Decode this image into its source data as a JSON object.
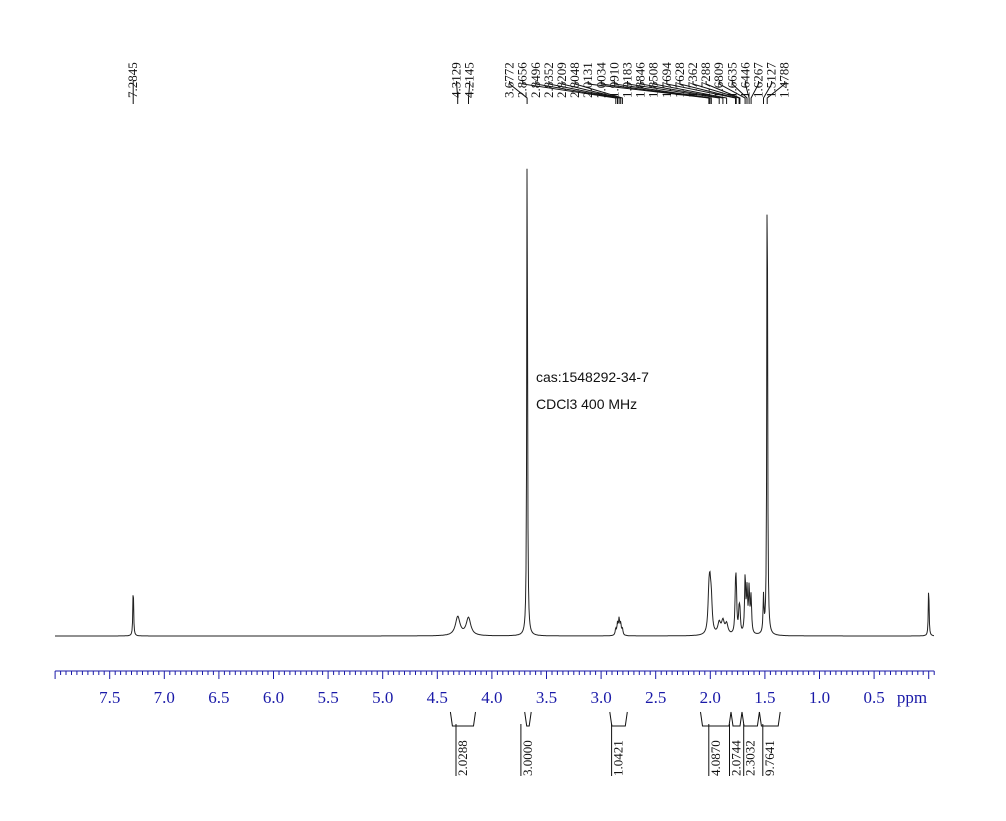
{
  "annotations": {
    "cas": "cas:1548292-34-7",
    "solvent_freq": "CDCl3   400 MHz"
  },
  "chart_data": {
    "type": "line",
    "title": "",
    "xlabel": "ppm",
    "ylabel": "",
    "x_reversed": true,
    "xlim": [
      -0.05,
      8.0
    ],
    "x_ticks": [
      "7.5",
      "7.0",
      "6.5",
      "6.0",
      "5.5",
      "5.0",
      "4.5",
      "4.0",
      "3.5",
      "3.0",
      "2.5",
      "2.0",
      "1.5",
      "1.0",
      "0.5"
    ],
    "x_tick_values": [
      7.5,
      7.0,
      6.5,
      6.0,
      5.5,
      5.0,
      4.5,
      4.0,
      3.5,
      3.0,
      2.5,
      2.0,
      1.5,
      1.0,
      0.5
    ],
    "grid": false,
    "peak_labels": [
      {
        "value": "7.2845",
        "group": 0
      },
      {
        "value": "4.3129",
        "group": 1
      },
      {
        "value": "4.2145",
        "group": 1
      },
      {
        "value": "3.6772",
        "group": 2
      },
      {
        "value": "2.8656",
        "group": 2
      },
      {
        "value": "2.8496",
        "group": 2
      },
      {
        "value": "2.8352",
        "group": 2
      },
      {
        "value": "2.8209",
        "group": 2
      },
      {
        "value": "2.8048",
        "group": 2
      },
      {
        "value": "2.0131",
        "group": 2
      },
      {
        "value": "2.0034",
        "group": 2
      },
      {
        "value": "1.9910",
        "group": 2
      },
      {
        "value": "1.9183",
        "group": 2
      },
      {
        "value": "1.8846",
        "group": 2
      },
      {
        "value": "1.8508",
        "group": 2
      },
      {
        "value": "1.7694",
        "group": 2
      },
      {
        "value": "1.7628",
        "group": 2
      },
      {
        "value": "1.7362",
        "group": 2
      },
      {
        "value": "1.7288",
        "group": 2
      },
      {
        "value": "1.6809",
        "group": 2
      },
      {
        "value": "1.6635",
        "group": 2
      },
      {
        "value": "1.6446",
        "group": 2
      },
      {
        "value": "1.6267",
        "group": 2
      },
      {
        "value": "1.5127",
        "group": 2
      },
      {
        "value": "1.4788",
        "group": 2
      }
    ],
    "peaks": [
      {
        "ppm": 7.2845,
        "height": 0.1,
        "width": 0.004
      },
      {
        "ppm": 4.3129,
        "height": 0.036,
        "width": 0.025
      },
      {
        "ppm": 4.2145,
        "height": 0.034,
        "width": 0.025
      },
      {
        "ppm": 3.6772,
        "height": 1.0,
        "width": 0.004
      },
      {
        "ppm": 2.8656,
        "height": 0.012,
        "width": 0.006
      },
      {
        "ppm": 2.8496,
        "height": 0.022,
        "width": 0.006
      },
      {
        "ppm": 2.8352,
        "height": 0.03,
        "width": 0.006
      },
      {
        "ppm": 2.8209,
        "height": 0.022,
        "width": 0.006
      },
      {
        "ppm": 2.8048,
        "height": 0.012,
        "width": 0.006
      },
      {
        "ppm": 2.0131,
        "height": 0.06,
        "width": 0.01
      },
      {
        "ppm": 2.0034,
        "height": 0.07,
        "width": 0.01
      },
      {
        "ppm": 1.991,
        "height": 0.055,
        "width": 0.01
      },
      {
        "ppm": 1.9183,
        "height": 0.022,
        "width": 0.015
      },
      {
        "ppm": 1.8846,
        "height": 0.025,
        "width": 0.015
      },
      {
        "ppm": 1.8508,
        "height": 0.02,
        "width": 0.015
      },
      {
        "ppm": 1.7694,
        "height": 0.07,
        "width": 0.006
      },
      {
        "ppm": 1.7628,
        "height": 0.08,
        "width": 0.006
      },
      {
        "ppm": 1.7362,
        "height": 0.04,
        "width": 0.006
      },
      {
        "ppm": 1.7288,
        "height": 0.035,
        "width": 0.006
      },
      {
        "ppm": 1.6809,
        "height": 0.11,
        "width": 0.006
      },
      {
        "ppm": 1.6635,
        "height": 0.08,
        "width": 0.006
      },
      {
        "ppm": 1.6446,
        "height": 0.085,
        "width": 0.006
      },
      {
        "ppm": 1.6267,
        "height": 0.07,
        "width": 0.006
      },
      {
        "ppm": 1.5127,
        "height": 0.07,
        "width": 0.005
      },
      {
        "ppm": 1.4788,
        "height": 1.0,
        "width": 0.004
      },
      {
        "ppm": 0.0,
        "height": 0.1,
        "width": 0.004
      }
    ],
    "integrals": [
      {
        "value": "2.0288",
        "from": 4.38,
        "to": 4.15
      },
      {
        "value": "3.0000",
        "from": 3.7,
        "to": 3.64
      },
      {
        "value": "1.0421",
        "from": 2.92,
        "to": 2.76
      },
      {
        "value": "4.0870",
        "from": 2.09,
        "to": 1.81
      },
      {
        "value": "2.0744",
        "from": 1.81,
        "to": 1.71
      },
      {
        "value": "2.3032",
        "from": 1.71,
        "to": 1.55
      },
      {
        "value": "9.7641",
        "from": 1.55,
        "to": 1.36
      }
    ]
  }
}
